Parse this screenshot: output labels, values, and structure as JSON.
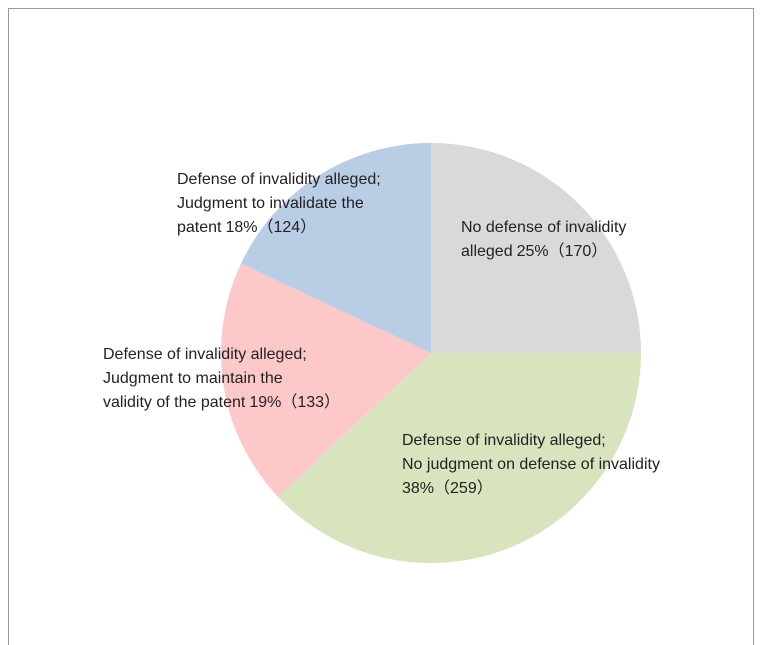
{
  "chart_data": {
    "type": "pie",
    "categories": [
      "No defense of invalidity alleged",
      "Defense of invalidity alleged; No judgment on defense of invalidity",
      "Defense of invalidity alleged; Judgment to maintain the validity of the patent",
      "Defense of invalidity alleged; Judgment to invalidate the patent"
    ],
    "values": [
      25,
      38,
      19,
      18
    ],
    "value_labels": [
      "25%（170）",
      "38%（259）",
      "19%（133）",
      "18%（124）"
    ],
    "colors": [
      "#d9d9d9",
      "#d7e4bd",
      "#fcc8c8",
      "#b9cde5"
    ]
  }
}
